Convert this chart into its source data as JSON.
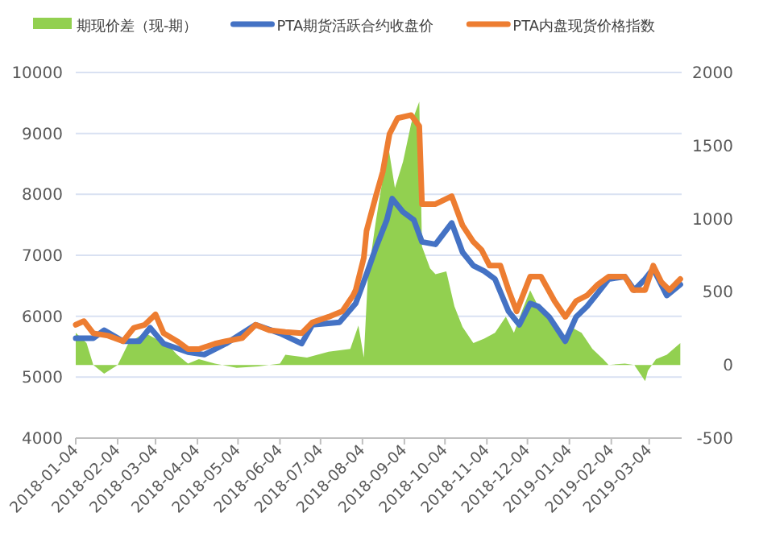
{
  "chart_data": {
    "type": "line",
    "legend": "top",
    "grid": "y",
    "xlim": [
      "2018-01-04",
      "2019-03-28"
    ],
    "xticks": [
      "2018-01-04",
      "2018-02-04",
      "2018-03-04",
      "2018-04-04",
      "2018-05-04",
      "2018-06-04",
      "2018-07-04",
      "2018-08-04",
      "2018-09-04",
      "2018-10-04",
      "2018-11-04",
      "2018-12-04",
      "2019-01-04",
      "2019-02-04",
      "2019-03-04"
    ],
    "ylim": [
      4000,
      10000
    ],
    "yticks": [
      4000,
      5000,
      6000,
      7000,
      8000,
      9000,
      10000
    ],
    "y2lim": [
      -500,
      2000
    ],
    "y2ticks": [
      -500,
      0,
      500,
      1000,
      1500,
      2000
    ],
    "series": [
      {
        "name": "期现价差（现-期）",
        "type": "area",
        "axis": "y2",
        "color": "#92d050",
        "x": [
          "2018-01-04",
          "2018-01-12",
          "2018-01-17",
          "2018-01-25",
          "2018-02-04",
          "2018-02-12",
          "2018-02-24",
          "2018-03-04",
          "2018-03-12",
          "2018-03-20",
          "2018-03-28",
          "2018-04-05",
          "2018-04-17",
          "2018-05-03",
          "2018-05-19",
          "2018-06-04",
          "2018-06-08",
          "2018-06-24",
          "2018-07-10",
          "2018-07-26",
          "2018-08-01",
          "2018-08-05",
          "2018-08-08",
          "2018-08-14",
          "2018-08-23",
          "2018-08-28",
          "2018-09-03",
          "2018-09-09",
          "2018-09-15",
          "2018-09-17",
          "2018-09-23",
          "2018-09-27",
          "2018-10-05",
          "2018-10-11",
          "2018-10-17",
          "2018-10-25",
          "2018-11-02",
          "2018-11-10",
          "2018-11-18",
          "2018-11-24",
          "2018-11-30",
          "2018-12-06",
          "2018-12-12",
          "2018-12-20",
          "2018-12-30",
          "2019-01-05",
          "2019-01-13",
          "2019-01-21",
          "2019-01-29",
          "2019-02-02",
          "2019-02-14",
          "2019-02-21",
          "2019-03-01",
          "2019-03-03",
          "2019-03-09",
          "2019-03-17",
          "2019-03-27"
        ],
        "values": [
          220,
          150,
          0,
          -60,
          0,
          150,
          220,
          180,
          150,
          70,
          10,
          40,
          10,
          -20,
          -10,
          10,
          70,
          50,
          90,
          110,
          270,
          50,
          600,
          990,
          1500,
          1210,
          1390,
          1650,
          1800,
          810,
          660,
          620,
          640,
          400,
          260,
          150,
          180,
          220,
          330,
          220,
          370,
          510,
          400,
          330,
          180,
          260,
          220,
          110,
          40,
          0,
          10,
          0,
          -110,
          -40,
          40,
          70,
          150
        ]
      },
      {
        "name": "PTA期货活跃合约收盘价",
        "type": "line",
        "color": "#4472c4",
        "x": [
          "2018-01-04",
          "2018-01-17",
          "2018-01-25",
          "2018-02-08",
          "2018-02-20",
          "2018-02-28",
          "2018-03-10",
          "2018-03-28",
          "2018-04-09",
          "2018-04-25",
          "2018-05-17",
          "2018-06-04",
          "2018-06-20",
          "2018-06-28",
          "2018-07-18",
          "2018-07-30",
          "2018-08-07",
          "2018-08-14",
          "2018-08-22",
          "2018-08-26",
          "2018-09-03",
          "2018-09-11",
          "2018-09-17",
          "2018-09-27",
          "2018-10-09",
          "2018-10-17",
          "2018-10-25",
          "2018-11-02",
          "2018-11-10",
          "2018-11-20",
          "2018-11-28",
          "2018-12-06",
          "2018-12-12",
          "2018-12-20",
          "2019-01-01",
          "2019-01-09",
          "2019-01-17",
          "2019-01-25",
          "2019-02-02",
          "2019-02-14",
          "2019-02-21",
          "2019-03-01",
          "2019-03-07",
          "2019-03-17",
          "2019-03-27"
        ],
        "values": [
          5640,
          5640,
          5770,
          5590,
          5590,
          5810,
          5550,
          5410,
          5370,
          5550,
          5860,
          5720,
          5550,
          5860,
          5900,
          6210,
          6690,
          7130,
          7580,
          7930,
          7710,
          7580,
          7220,
          7180,
          7530,
          7050,
          6830,
          6740,
          6610,
          6080,
          5860,
          6210,
          6160,
          5990,
          5590,
          5990,
          6160,
          6380,
          6610,
          6650,
          6430,
          6610,
          6780,
          6340,
          6520
        ]
      },
      {
        "name": "PTA内盘现货价格指数",
        "type": "line",
        "color": "#ed7d31",
        "x": [
          "2018-01-04",
          "2018-01-10",
          "2018-01-17",
          "2018-01-28",
          "2018-02-08",
          "2018-02-16",
          "2018-02-24",
          "2018-03-04",
          "2018-03-10",
          "2018-03-20",
          "2018-03-28",
          "2018-04-05",
          "2018-04-17",
          "2018-04-25",
          "2018-05-07",
          "2018-05-17",
          "2018-05-27",
          "2018-06-08",
          "2018-06-20",
          "2018-06-28",
          "2018-07-10",
          "2018-07-20",
          "2018-07-28",
          "2018-07-30",
          "2018-08-05",
          "2018-08-07",
          "2018-08-14",
          "2018-08-19",
          "2018-08-24",
          "2018-08-30",
          "2018-09-09",
          "2018-09-15",
          "2018-09-17",
          "2018-09-27",
          "2018-10-09",
          "2018-10-17",
          "2018-10-25",
          "2018-10-31",
          "2018-11-06",
          "2018-11-14",
          "2018-11-20",
          "2018-11-26",
          "2018-12-06",
          "2018-12-14",
          "2018-12-24",
          "2019-01-01",
          "2019-01-09",
          "2019-01-17",
          "2019-01-25",
          "2019-02-02",
          "2019-02-14",
          "2019-02-20",
          "2019-03-01",
          "2019-03-07",
          "2019-03-13",
          "2019-03-19",
          "2019-03-27"
        ],
        "values": [
          5860,
          5920,
          5720,
          5680,
          5590,
          5810,
          5860,
          6030,
          5720,
          5590,
          5460,
          5460,
          5550,
          5590,
          5640,
          5860,
          5770,
          5740,
          5720,
          5900,
          5990,
          6080,
          6340,
          6430,
          6960,
          7400,
          7980,
          8370,
          8990,
          9250,
          9300,
          9120,
          7840,
          7840,
          7970,
          7490,
          7220,
          7090,
          6830,
          6830,
          6430,
          6080,
          6650,
          6650,
          6250,
          5990,
          6250,
          6340,
          6520,
          6650,
          6650,
          6430,
          6430,
          6830,
          6560,
          6430,
          6610
        ]
      }
    ]
  }
}
